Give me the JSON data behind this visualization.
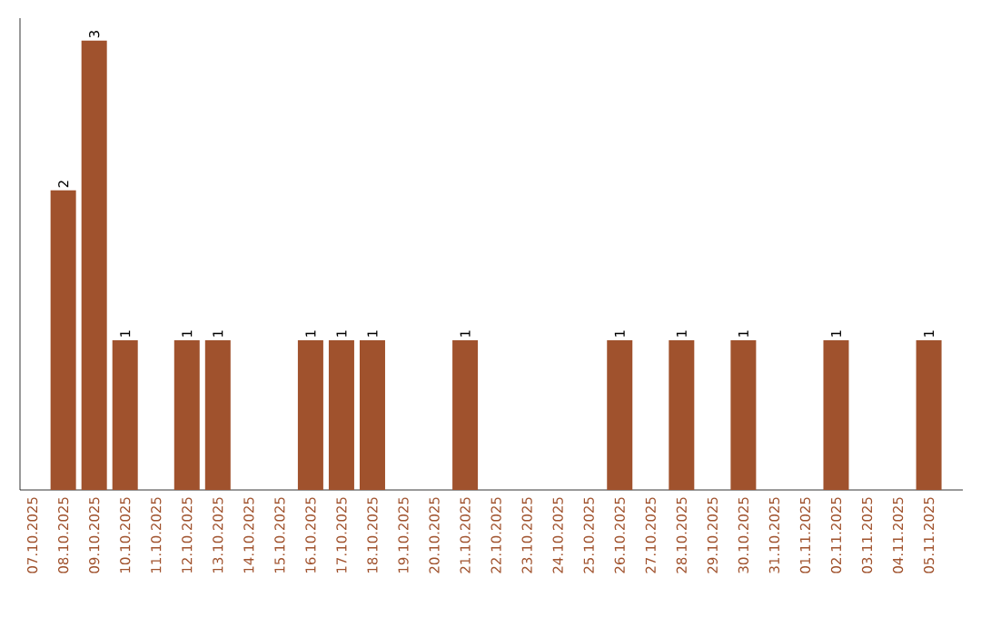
{
  "chart_data": {
    "type": "bar",
    "color": "#a0522d",
    "categories": [
      "07.10.2025",
      "08.10.2025",
      "09.10.2025",
      "10.10.2025",
      "11.10.2025",
      "12.10.2025",
      "13.10.2025",
      "14.10.2025",
      "15.10.2025",
      "16.10.2025",
      "17.10.2025",
      "18.10.2025",
      "19.10.2025",
      "20.10.2025",
      "21.10.2025",
      "22.10.2025",
      "23.10.2025",
      "24.10.2025",
      "25.10.2025",
      "26.10.2025",
      "27.10.2025",
      "28.10.2025",
      "29.10.2025",
      "30.10.2025",
      "31.10.2025",
      "01.11.2025",
      "02.11.2025",
      "03.11.2025",
      "04.11.2025",
      "05.11.2025"
    ],
    "values": [
      0,
      2,
      3,
      1,
      0,
      1,
      1,
      0,
      0,
      1,
      1,
      1,
      0,
      0,
      1,
      0,
      0,
      0,
      0,
      1,
      0,
      1,
      0,
      1,
      0,
      0,
      1,
      0,
      0,
      1
    ],
    "value_labels": [
      null,
      "2",
      "3",
      "1",
      null,
      "1",
      "1",
      null,
      null,
      "1",
      "1",
      "1",
      null,
      null,
      "1",
      null,
      null,
      null,
      null,
      "1",
      null,
      "1",
      null,
      "1",
      null,
      null,
      "1",
      null,
      null,
      "1"
    ],
    "data_labels": false
  }
}
